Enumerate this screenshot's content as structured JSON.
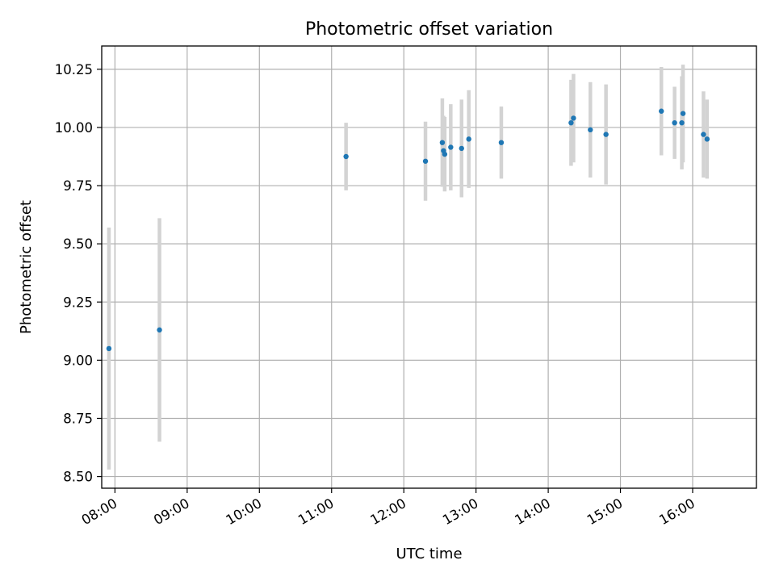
{
  "chart_data": {
    "type": "scatter",
    "title": "Photometric offset variation",
    "xlabel": "UTC time",
    "ylabel": "Photometric offset",
    "xlim": [
      "07:49",
      "16:53"
    ],
    "ylim": [
      8.45,
      10.35
    ],
    "grid": true,
    "x_ticks": [
      "08:00",
      "09:00",
      "10:00",
      "11:00",
      "12:00",
      "13:00",
      "14:00",
      "15:00",
      "16:00"
    ],
    "y_ticks": [
      "8.50",
      "8.75",
      "9.00",
      "9.25",
      "9.50",
      "9.75",
      "10.00",
      "10.25"
    ],
    "colors": {
      "point": "#1f77b4",
      "errorbar": "#d3d3d3",
      "grid": "#b0b0b0"
    },
    "series": [
      {
        "points": [
          {
            "x": "07:55",
            "y": 9.05,
            "err": 0.52
          },
          {
            "x": "08:37",
            "y": 9.13,
            "err": 0.48
          },
          {
            "x": "11:12",
            "y": 9.875,
            "err": 0.145
          },
          {
            "x": "12:18",
            "y": 9.855,
            "err": 0.17
          },
          {
            "x": "12:32",
            "y": 9.935,
            "err": 0.19
          },
          {
            "x": "12:33",
            "y": 9.9,
            "err": 0.15
          },
          {
            "x": "12:34",
            "y": 9.885,
            "err": 0.16
          },
          {
            "x": "12:39",
            "y": 9.915,
            "err": 0.185
          },
          {
            "x": "12:48",
            "y": 9.91,
            "err": 0.21
          },
          {
            "x": "12:54",
            "y": 9.95,
            "err": 0.21
          },
          {
            "x": "13:21",
            "y": 9.935,
            "err": 0.155
          },
          {
            "x": "14:19",
            "y": 10.02,
            "err": 0.185
          },
          {
            "x": "14:21",
            "y": 10.04,
            "err": 0.19
          },
          {
            "x": "14:35",
            "y": 9.99,
            "err": 0.205
          },
          {
            "x": "14:48",
            "y": 9.97,
            "err": 0.215
          },
          {
            "x": "15:34",
            "y": 10.07,
            "err": 0.19
          },
          {
            "x": "15:45",
            "y": 10.02,
            "err": 0.155
          },
          {
            "x": "15:51",
            "y": 10.02,
            "err": 0.2
          },
          {
            "x": "15:52",
            "y": 10.06,
            "err": 0.21
          },
          {
            "x": "16:09",
            "y": 9.97,
            "err": 0.185
          },
          {
            "x": "16:12",
            "y": 9.95,
            "err": 0.17
          }
        ]
      }
    ]
  }
}
